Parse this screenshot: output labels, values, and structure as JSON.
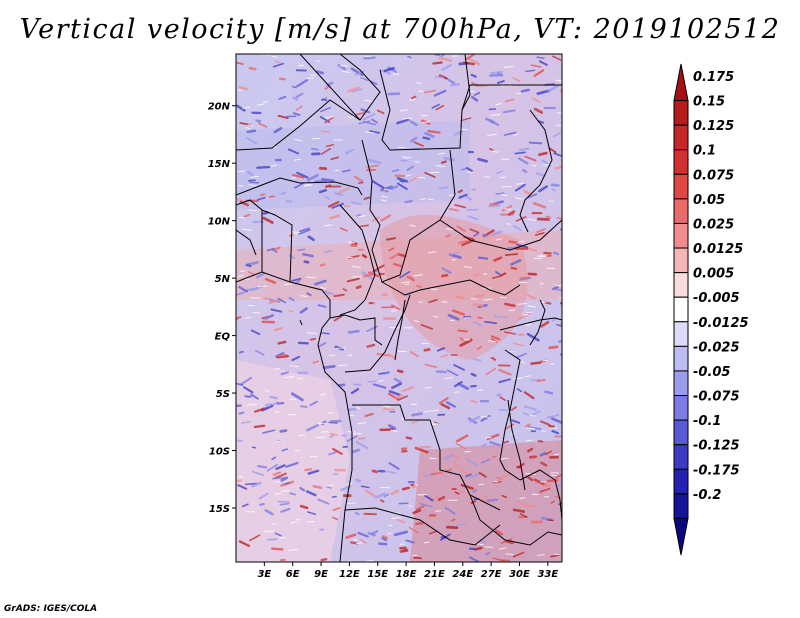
{
  "title": "Vertical velocity [m/s] at 700hPa, VT: 2019102512",
  "credit": "GrADS: IGES/COLA",
  "map": {
    "lat_ticks": [
      {
        "label": "20N",
        "value": 20
      },
      {
        "label": "15N",
        "value": 15
      },
      {
        "label": "10N",
        "value": 10
      },
      {
        "label": "5N",
        "value": 5
      },
      {
        "label": "EQ",
        "value": 0
      },
      {
        "label": "5S",
        "value": -5
      },
      {
        "label": "10S",
        "value": -10
      },
      {
        "label": "15S",
        "value": -15
      }
    ],
    "lon_ticks": [
      {
        "label": "3E",
        "value": 3
      },
      {
        "label": "6E",
        "value": 6
      },
      {
        "label": "9E",
        "value": 9
      },
      {
        "label": "12E",
        "value": 12
      },
      {
        "label": "15E",
        "value": 15
      },
      {
        "label": "18E",
        "value": 18
      },
      {
        "label": "21E",
        "value": 21
      },
      {
        "label": "24E",
        "value": 24
      },
      {
        "label": "27E",
        "value": 27
      },
      {
        "label": "30E",
        "value": 30
      },
      {
        "label": "33E",
        "value": 33
      }
    ],
    "lat_range": [
      -19.7,
      24.5
    ],
    "lon_range": [
      0,
      34.5
    ]
  },
  "colorbar": {
    "levels": [
      "0.175",
      "0.15",
      "0.125",
      "0.1",
      "0.075",
      "0.05",
      "0.025",
      "0.0125",
      "0.005",
      "-0.005",
      "-0.0125",
      "-0.025",
      "-0.05",
      "-0.075",
      "-0.1",
      "-0.125",
      "-0.175",
      "-0.2"
    ],
    "colors": [
      "#a50f15",
      "#b71c1c",
      "#c62828",
      "#d32f2f",
      "#e04848",
      "#e86a6a",
      "#f08c8c",
      "#f6b5b5",
      "#fbdcdc",
      "#ffffff",
      "#dcdcfa",
      "#bdbdf3",
      "#9c9cec",
      "#7c7ce2",
      "#5a5ad6",
      "#3b3bc6",
      "#2323b0",
      "#15159a",
      "#0a0a80"
    ]
  }
}
